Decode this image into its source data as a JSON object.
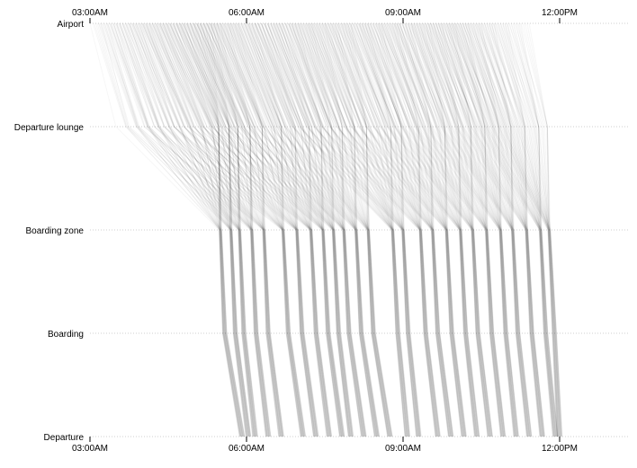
{
  "chart_data": {
    "type": "line",
    "title": "",
    "xlabel": "",
    "ylabel": "",
    "stages": [
      "Airport",
      "Departure lounge",
      "Boarding zone",
      "Boarding",
      "Departure"
    ],
    "x_ticks": [
      "03:00AM",
      "06:00AM",
      "09:00AM",
      "12:00PM"
    ],
    "xlim": [
      "03:00",
      "12:00"
    ],
    "line_color": "#000000",
    "line_opacity": 0.035,
    "flights": [
      {
        "airport_start": "03:00",
        "airport_end": "05:20",
        "lounge_start": "03:35",
        "lounge_end": "06:40",
        "zone": "05:30",
        "boarding": "05:35",
        "departure": "05:55"
      },
      {
        "airport_start": "03:05",
        "airport_end": "05:25",
        "lounge_start": "03:40",
        "lounge_end": "06:40",
        "zone": "05:42",
        "boarding": "05:47",
        "departure": "06:02"
      },
      {
        "airport_start": "03:10",
        "airport_end": "05:30",
        "lounge_start": "03:45",
        "lounge_end": "06:40",
        "zone": "05:52",
        "boarding": "05:57",
        "departure": "06:10"
      },
      {
        "airport_start": "03:12",
        "airport_end": "05:40",
        "lounge_start": "03:50",
        "lounge_end": "06:45",
        "zone": "06:06",
        "boarding": "06:11",
        "departure": "06:25"
      },
      {
        "airport_start": "03:20",
        "airport_end": "05:50",
        "lounge_start": "04:00",
        "lounge_end": "06:50",
        "zone": "06:20",
        "boarding": "06:25",
        "departure": "06:40"
      },
      {
        "airport_start": "03:30",
        "airport_end": "06:10",
        "lounge_start": "04:15",
        "lounge_end": "07:05",
        "zone": "06:42",
        "boarding": "06:48",
        "departure": "07:05"
      },
      {
        "airport_start": "03:45",
        "airport_end": "06:25",
        "lounge_start": "04:30",
        "lounge_end": "07:15",
        "zone": "06:58",
        "boarding": "07:04",
        "departure": "07:20"
      },
      {
        "airport_start": "04:00",
        "airport_end": "06:40",
        "lounge_start": "04:50",
        "lounge_end": "07:30",
        "zone": "07:14",
        "boarding": "07:20",
        "departure": "07:35"
      },
      {
        "airport_start": "04:20",
        "airport_end": "07:00",
        "lounge_start": "05:10",
        "lounge_end": "07:45",
        "zone": "07:28",
        "boarding": "07:34",
        "departure": "07:50"
      },
      {
        "airport_start": "04:40",
        "airport_end": "07:15",
        "lounge_start": "05:30",
        "lounge_end": "07:55",
        "zone": "07:40",
        "boarding": "07:46",
        "departure": "08:00"
      },
      {
        "airport_start": "05:00",
        "airport_end": "07:30",
        "lounge_start": "05:50",
        "lounge_end": "08:10",
        "zone": "07:52",
        "boarding": "07:58",
        "departure": "08:15"
      },
      {
        "airport_start": "05:20",
        "airport_end": "07:45",
        "lounge_start": "06:10",
        "lounge_end": "08:25",
        "zone": "08:06",
        "boarding": "08:12",
        "departure": "08:30"
      },
      {
        "airport_start": "05:40",
        "airport_end": "08:00",
        "lounge_start": "06:30",
        "lounge_end": "08:40",
        "zone": "08:20",
        "boarding": "08:26",
        "departure": "08:45"
      },
      {
        "airport_start": "06:00",
        "airport_end": "08:20",
        "lounge_start": "06:50",
        "lounge_end": "09:00",
        "zone": "08:48",
        "boarding": "08:54",
        "departure": "09:05"
      },
      {
        "airport_start": "06:10",
        "airport_end": "08:35",
        "lounge_start": "07:00",
        "lounge_end": "09:15",
        "zone": "09:00",
        "boarding": "09:06",
        "departure": "09:18"
      },
      {
        "airport_start": "06:30",
        "airport_end": "08:55",
        "lounge_start": "07:20",
        "lounge_end": "09:35",
        "zone": "09:20",
        "boarding": "09:26",
        "departure": "09:40"
      },
      {
        "airport_start": "06:50",
        "airport_end": "09:10",
        "lounge_start": "07:40",
        "lounge_end": "09:50",
        "zone": "09:34",
        "boarding": "09:40",
        "departure": "09:55"
      },
      {
        "airport_start": "07:10",
        "airport_end": "09:30",
        "lounge_start": "08:00",
        "lounge_end": "10:05",
        "zone": "09:50",
        "boarding": "09:56",
        "departure": "10:10"
      },
      {
        "airport_start": "07:30",
        "airport_end": "09:45",
        "lounge_start": "08:20",
        "lounge_end": "10:20",
        "zone": "10:06",
        "boarding": "10:12",
        "departure": "10:25"
      },
      {
        "airport_start": "07:50",
        "airport_end": "10:00",
        "lounge_start": "08:40",
        "lounge_end": "10:35",
        "zone": "10:20",
        "boarding": "10:26",
        "departure": "10:40"
      },
      {
        "airport_start": "08:10",
        "airport_end": "10:15",
        "lounge_start": "09:00",
        "lounge_end": "10:50",
        "zone": "10:36",
        "boarding": "10:42",
        "departure": "10:55"
      },
      {
        "airport_start": "08:30",
        "airport_end": "10:30",
        "lounge_start": "09:20",
        "lounge_end": "11:05",
        "zone": "10:52",
        "boarding": "10:58",
        "departure": "11:10"
      },
      {
        "airport_start": "08:50",
        "airport_end": "10:45",
        "lounge_start": "09:40",
        "lounge_end": "11:20",
        "zone": "11:06",
        "boarding": "11:12",
        "departure": "11:25"
      },
      {
        "airport_start": "09:10",
        "airport_end": "11:00",
        "lounge_start": "10:00",
        "lounge_end": "11:35",
        "zone": "11:22",
        "boarding": "11:28",
        "departure": "11:40"
      },
      {
        "airport_start": "09:30",
        "airport_end": "11:15",
        "lounge_start": "10:20",
        "lounge_end": "11:50",
        "zone": "11:38",
        "boarding": "11:44",
        "departure": "11:55"
      },
      {
        "airport_start": "09:50",
        "airport_end": "11:25",
        "lounge_start": "10:40",
        "lounge_end": "11:55",
        "zone": "11:48",
        "boarding": "11:54",
        "departure": "12:00"
      }
    ]
  }
}
